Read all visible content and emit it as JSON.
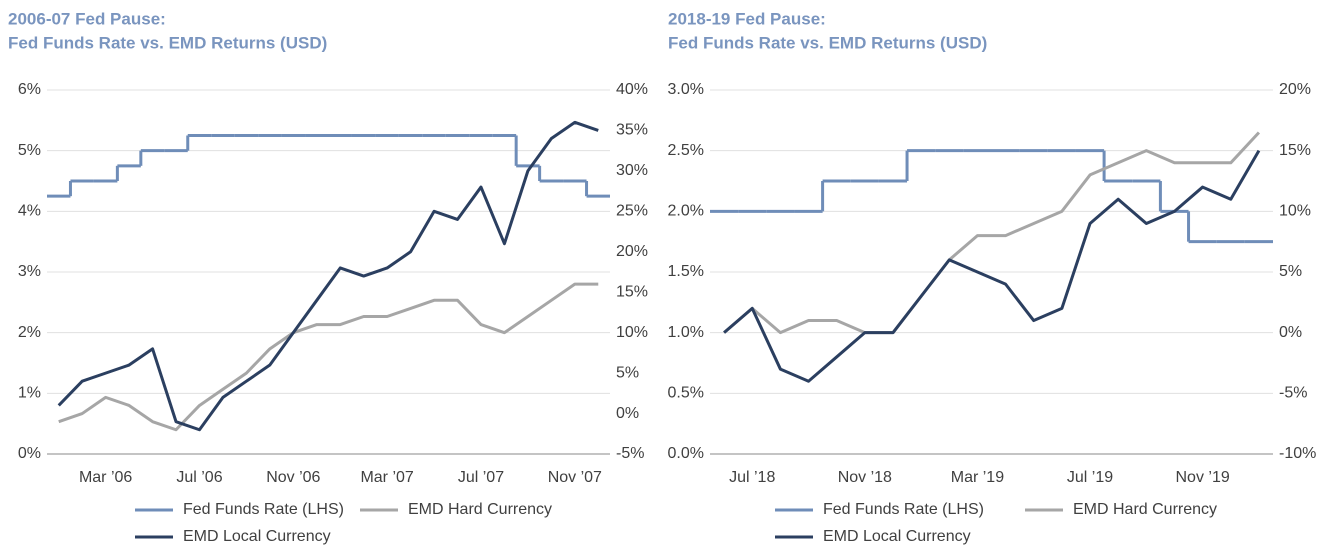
{
  "chart_data": [
    {
      "type": "line",
      "title": "2006-07 Fed Pause:",
      "subtitle": "Fed Funds Rate vs. EMD Returns (USD)",
      "categories": [
        null,
        null,
        "Mar ’06",
        null,
        null,
        null,
        "Jul ’06",
        null,
        null,
        null,
        "Nov ’06",
        null,
        null,
        null,
        "Mar ’07",
        null,
        null,
        null,
        "Jul ’07",
        null,
        null,
        null,
        "Nov ’07",
        null
      ],
      "series": [
        {
          "name": "Fed Funds Rate (LHS)",
          "color": "#6f8db8",
          "step": true,
          "values": [
            4.25,
            4.5,
            4.5,
            4.75,
            5.0,
            5.0,
            5.25,
            5.25,
            5.25,
            5.25,
            5.25,
            5.25,
            5.25,
            5.25,
            5.25,
            5.25,
            5.25,
            5.25,
            5.25,
            5.25,
            4.75,
            4.5,
            4.5,
            4.25
          ]
        },
        {
          "name": "EMD Hard Currency",
          "color": "#a6a6a6",
          "axis": "y2",
          "values": [
            -1,
            0,
            2,
            1,
            -1,
            -2,
            1,
            3,
            5,
            8,
            10,
            11,
            11,
            12,
            12,
            13,
            14,
            14,
            11,
            10,
            12,
            14,
            16,
            16
          ]
        },
        {
          "name": "EMD Local Currency",
          "color": "#2b3f60",
          "axis": "y2",
          "values": [
            1,
            4,
            5,
            6,
            8,
            -1,
            -2,
            2,
            4,
            6,
            10,
            14,
            18,
            17,
            18,
            20,
            25,
            24,
            28,
            21,
            30,
            34,
            36,
            35
          ]
        }
      ],
      "ylim": [
        0,
        6
      ],
      "yticks": [
        {
          "value": 0,
          "label": "0%"
        },
        {
          "value": 1,
          "label": "1%"
        },
        {
          "value": 2,
          "label": "2%"
        },
        {
          "value": 3,
          "label": "3%"
        },
        {
          "value": 4,
          "label": "4%"
        },
        {
          "value": 5,
          "label": "5%"
        },
        {
          "value": 6,
          "label": "6%"
        }
      ],
      "y2lim": [
        -5,
        40
      ],
      "y2ticks": [
        {
          "value": -5,
          "label": "-5%"
        },
        {
          "value": 0,
          "label": "0%"
        },
        {
          "value": 5,
          "label": "5%"
        },
        {
          "value": 10,
          "label": "10%"
        },
        {
          "value": 15,
          "label": "15%"
        },
        {
          "value": 20,
          "label": "20%"
        },
        {
          "value": 25,
          "label": "25%"
        },
        {
          "value": 30,
          "label": "30%"
        },
        {
          "value": 35,
          "label": "35%"
        },
        {
          "value": 40,
          "label": "40%"
        }
      ],
      "grid": true
    },
    {
      "type": "line",
      "title": "2018-19 Fed Pause:",
      "subtitle": "Fed Funds Rate vs. EMD Returns (USD)",
      "categories": [
        null,
        "Jul ’18",
        null,
        null,
        null,
        "Nov ’18",
        null,
        null,
        null,
        "Mar ’19",
        null,
        null,
        null,
        "Jul ’19",
        null,
        null,
        null,
        "Nov ’19",
        null,
        null
      ],
      "series": [
        {
          "name": "Fed Funds Rate (LHS)",
          "color": "#6f8db8",
          "step": true,
          "values": [
            2.0,
            2.0,
            2.0,
            2.0,
            2.25,
            2.25,
            2.25,
            2.5,
            2.5,
            2.5,
            2.5,
            2.5,
            2.5,
            2.5,
            2.25,
            2.25,
            2.0,
            1.75,
            1.75,
            1.75
          ]
        },
        {
          "name": "EMD Hard Currency",
          "color": "#a6a6a6",
          "axis": "y2",
          "values": [
            0,
            2,
            0,
            1,
            1,
            0,
            0,
            3,
            6,
            8,
            8,
            9,
            10,
            13,
            14,
            15,
            14,
            14,
            14,
            16.5
          ]
        },
        {
          "name": "EMD Local Currency",
          "color": "#2b3f60",
          "axis": "y2",
          "values": [
            0,
            2,
            -3,
            -4,
            -2,
            0,
            0,
            3,
            6,
            5,
            4,
            1,
            2,
            9,
            11,
            9,
            10,
            12,
            11,
            15
          ]
        }
      ],
      "ylim": [
        0,
        3
      ],
      "yticks": [
        {
          "value": 0,
          "label": "0.0%"
        },
        {
          "value": 0.5,
          "label": "0.5%"
        },
        {
          "value": 1,
          "label": "1.0%"
        },
        {
          "value": 1.5,
          "label": "1.5%"
        },
        {
          "value": 2,
          "label": "2.0%"
        },
        {
          "value": 2.5,
          "label": "2.5%"
        },
        {
          "value": 3,
          "label": "3.0%"
        }
      ],
      "y2lim": [
        -10,
        20
      ],
      "y2ticks": [
        {
          "value": -10,
          "label": "-10%"
        },
        {
          "value": -5,
          "label": "-5%"
        },
        {
          "value": 0,
          "label": "0%"
        },
        {
          "value": 5,
          "label": "5%"
        },
        {
          "value": 10,
          "label": "10%"
        },
        {
          "value": 15,
          "label": "15%"
        },
        {
          "value": 20,
          "label": "20%"
        }
      ],
      "grid": true
    }
  ]
}
